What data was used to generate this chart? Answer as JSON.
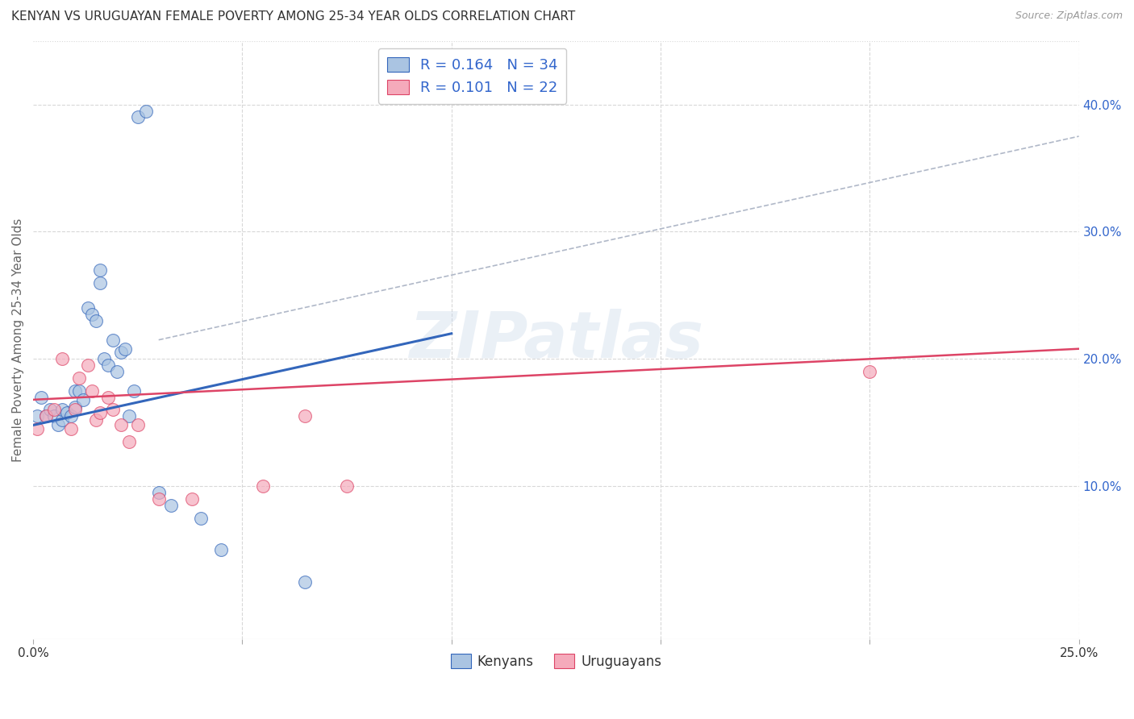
{
  "title": "KENYAN VS URUGUAYAN FEMALE POVERTY AMONG 25-34 YEAR OLDS CORRELATION CHART",
  "source": "Source: ZipAtlas.com",
  "ylabel": "Female Poverty Among 25-34 Year Olds",
  "xlim": [
    0.0,
    0.25
  ],
  "ylim": [
    -0.02,
    0.45
  ],
  "x_ticks": [
    0.0,
    0.05,
    0.1,
    0.15,
    0.2,
    0.25
  ],
  "x_tick_labels": [
    "0.0%",
    "",
    "",
    "",
    "",
    "25.0%"
  ],
  "y_ticks_right": [
    0.1,
    0.2,
    0.3,
    0.4
  ],
  "y_tick_labels_right": [
    "10.0%",
    "20.0%",
    "30.0%",
    "40.0%"
  ],
  "kenyan_color": "#aac4e2",
  "uruguayan_color": "#f5aabb",
  "kenyan_line_color": "#3366bb",
  "uruguayan_line_color": "#dd4466",
  "trend_dashed_color": "#b0b8c8",
  "background_color": "#ffffff",
  "watermark": "ZIPatlas",
  "kenyan_x": [
    0.001,
    0.002,
    0.003,
    0.004,
    0.005,
    0.006,
    0.007,
    0.007,
    0.008,
    0.009,
    0.01,
    0.01,
    0.011,
    0.012,
    0.013,
    0.014,
    0.015,
    0.016,
    0.016,
    0.017,
    0.018,
    0.019,
    0.02,
    0.021,
    0.022,
    0.023,
    0.024,
    0.025,
    0.027,
    0.03,
    0.033,
    0.04,
    0.045,
    0.065
  ],
  "kenyan_y": [
    0.155,
    0.17,
    0.155,
    0.16,
    0.155,
    0.148,
    0.152,
    0.16,
    0.158,
    0.155,
    0.162,
    0.175,
    0.175,
    0.168,
    0.24,
    0.235,
    0.23,
    0.27,
    0.26,
    0.2,
    0.195,
    0.215,
    0.19,
    0.205,
    0.208,
    0.155,
    0.175,
    0.39,
    0.395,
    0.095,
    0.085,
    0.075,
    0.05,
    0.025
  ],
  "uruguayan_x": [
    0.001,
    0.003,
    0.005,
    0.007,
    0.009,
    0.01,
    0.011,
    0.013,
    0.014,
    0.015,
    0.016,
    0.018,
    0.019,
    0.021,
    0.023,
    0.025,
    0.03,
    0.038,
    0.055,
    0.065,
    0.075,
    0.2
  ],
  "uruguayan_y": [
    0.145,
    0.155,
    0.16,
    0.2,
    0.145,
    0.16,
    0.185,
    0.195,
    0.175,
    0.152,
    0.158,
    0.17,
    0.16,
    0.148,
    0.135,
    0.148,
    0.09,
    0.09,
    0.1,
    0.155,
    0.1,
    0.19
  ],
  "kenyan_line_x": [
    0.0,
    0.1
  ],
  "kenyan_line_y": [
    0.148,
    0.22
  ],
  "uruguayan_line_x": [
    0.0,
    0.25
  ],
  "uruguayan_line_y": [
    0.168,
    0.208
  ],
  "dash_line_x": [
    0.03,
    0.25
  ],
  "dash_line_y": [
    0.215,
    0.375
  ],
  "marker_size": 130,
  "font_color_blue": "#3366cc",
  "gridline_color": "#d8d8d8"
}
